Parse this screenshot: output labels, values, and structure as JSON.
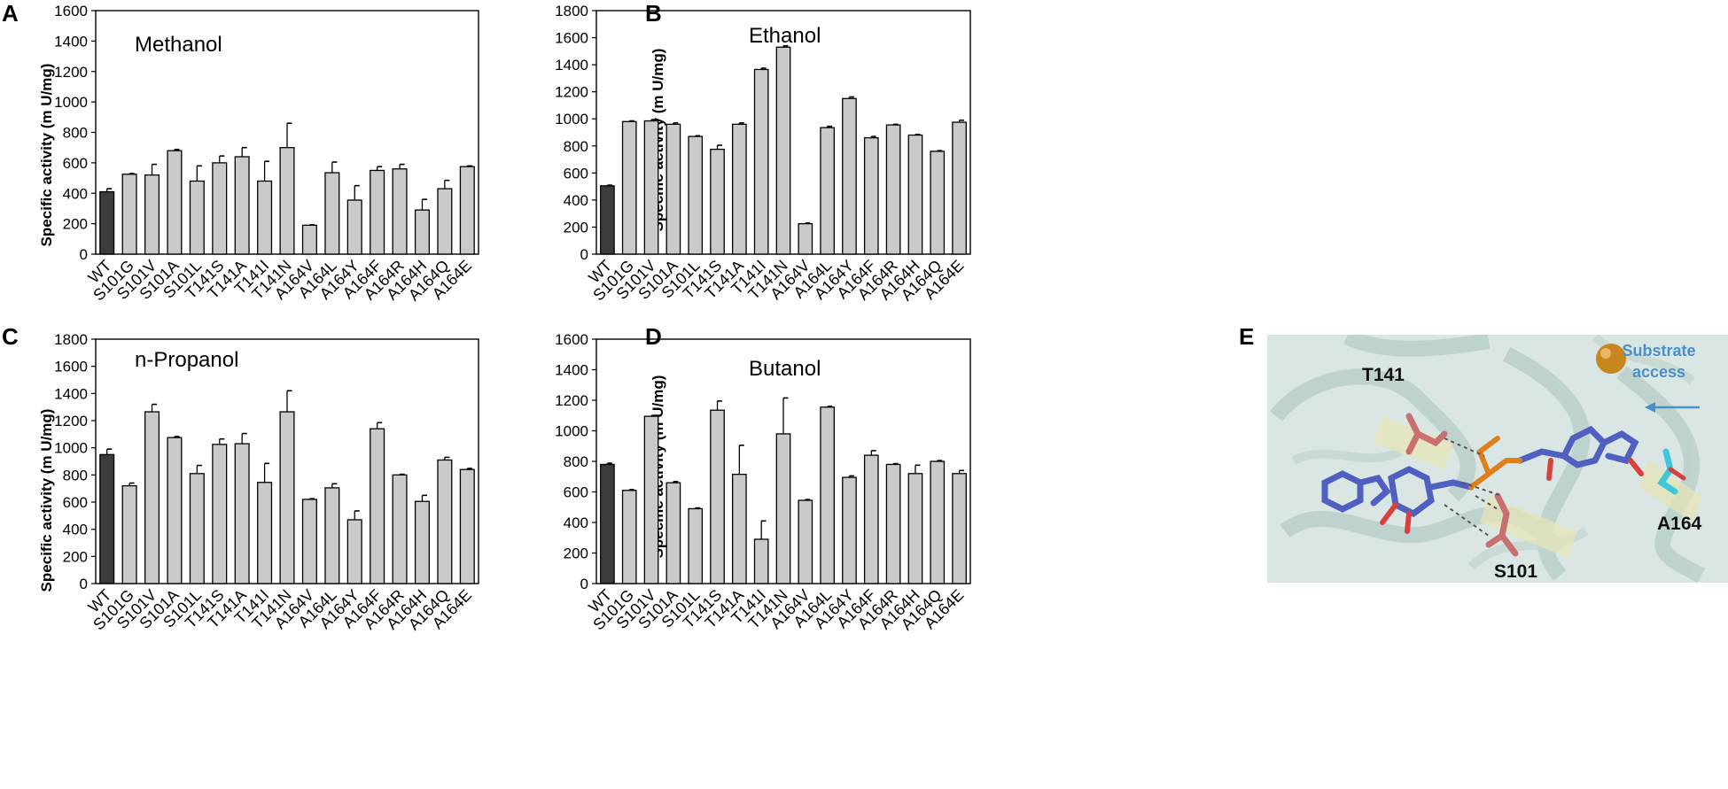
{
  "categories": [
    "WT",
    "S101G",
    "S101V",
    "S101A",
    "S101L",
    "T141S",
    "T141A",
    "T141I",
    "T141N",
    "A164V",
    "A164L",
    "A164Y",
    "A164F",
    "A164R",
    "A164H",
    "A164Q",
    "A164E"
  ],
  "colors": {
    "wt_bar": "#3c3c3c",
    "mutant_bar": "#cacaca",
    "bar_edge": "#000000",
    "substrate_arrow": "#4a90c8"
  },
  "chart_data": [
    {
      "panel": "A",
      "type": "bar",
      "title": "Methanol",
      "ylabel": "Specific activity (m U/mg)",
      "ylim": [
        0,
        1600
      ],
      "yticks": [
        0,
        200,
        400,
        600,
        800,
        1000,
        1200,
        1400,
        1600
      ],
      "values": [
        410,
        525,
        520,
        680,
        480,
        600,
        640,
        480,
        700,
        190,
        535,
        355,
        550,
        560,
        290,
        430,
        575
      ],
      "errors": [
        20,
        5,
        70,
        8,
        100,
        45,
        60,
        130,
        160,
        3,
        70,
        95,
        25,
        30,
        70,
        55,
        5
      ]
    },
    {
      "panel": "B",
      "type": "bar",
      "title": "Ethanol",
      "ylabel": "Specific activity (m U/mg)",
      "ylim": [
        0,
        1800
      ],
      "yticks": [
        0,
        200,
        400,
        600,
        800,
        1000,
        1200,
        1400,
        1600,
        1800
      ],
      "values": [
        505,
        980,
        985,
        960,
        870,
        775,
        960,
        1365,
        1530,
        225,
        935,
        1150,
        860,
        955,
        880,
        760,
        975
      ],
      "errors": [
        5,
        5,
        10,
        10,
        5,
        30,
        10,
        10,
        10,
        5,
        10,
        12,
        10,
        5,
        5,
        5,
        15
      ]
    },
    {
      "panel": "C",
      "type": "bar",
      "title": "n-Propanol",
      "ylabel": "Specific activity (m U/mg)",
      "ylim": [
        0,
        1800
      ],
      "yticks": [
        0,
        200,
        400,
        600,
        800,
        1000,
        1200,
        1400,
        1600,
        1800
      ],
      "values": [
        950,
        720,
        1265,
        1075,
        810,
        1025,
        1030,
        745,
        1265,
        620,
        705,
        470,
        1140,
        800,
        605,
        910,
        840
      ],
      "errors": [
        40,
        20,
        55,
        8,
        60,
        40,
        75,
        140,
        155,
        5,
        30,
        65,
        45,
        5,
        45,
        20,
        8
      ]
    },
    {
      "panel": "D",
      "type": "bar",
      "title": "Butanol",
      "ylabel": "Specific activity (m U/mg)",
      "ylim": [
        0,
        1600
      ],
      "yticks": [
        0,
        200,
        400,
        600,
        800,
        1000,
        1200,
        1400,
        1600
      ],
      "values": [
        780,
        610,
        1095,
        660,
        490,
        1135,
        715,
        290,
        980,
        545,
        1155,
        695,
        840,
        780,
        720,
        800,
        720
      ],
      "errors": [
        8,
        5,
        5,
        8,
        5,
        60,
        190,
        120,
        235,
        5,
        5,
        10,
        30,
        5,
        55,
        5,
        20
      ]
    }
  ],
  "panel_e": {
    "label": "E",
    "residues": [
      "T141",
      "S101",
      "A164"
    ],
    "annotation_line1": "Substrate",
    "annotation_line2": "access"
  }
}
